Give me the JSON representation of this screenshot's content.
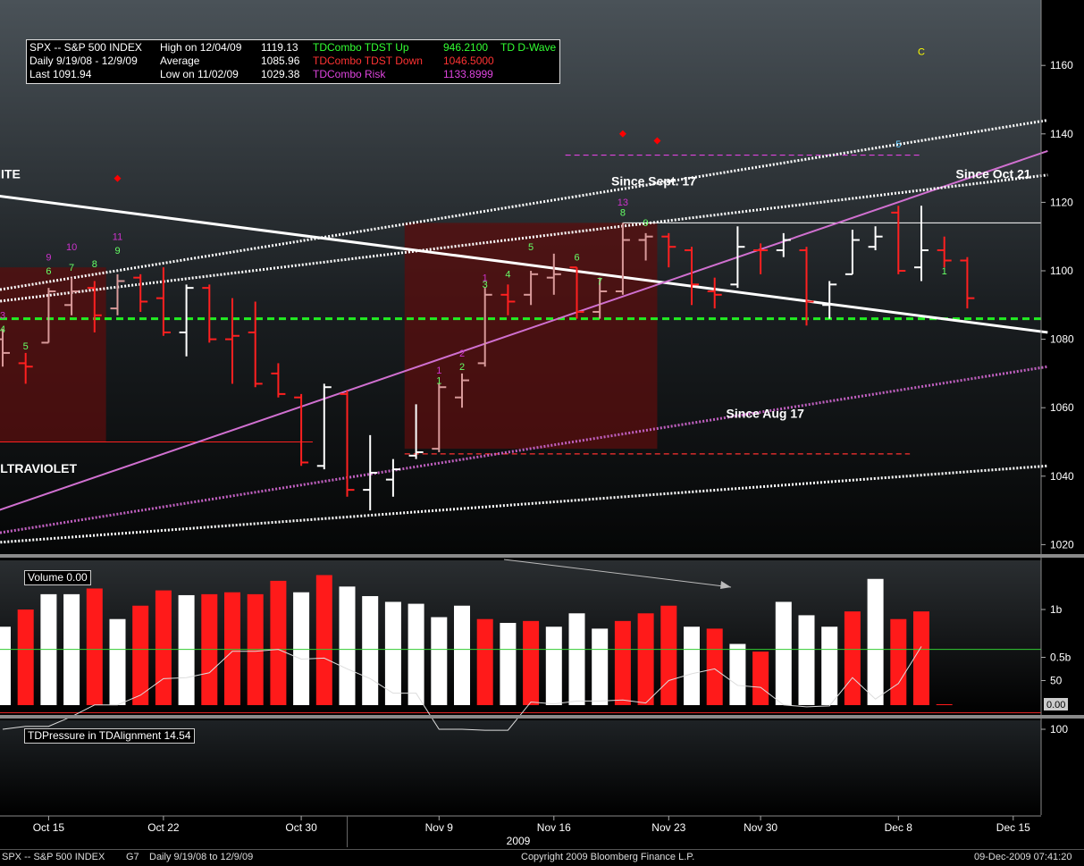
{
  "chart_data": {
    "type": "bar",
    "instrument": "SPX -- S&P 500 INDEX",
    "price_axis": {
      "ticks": [
        1020,
        1040,
        1060,
        1080,
        1100,
        1120,
        1140,
        1160
      ]
    },
    "volume_axis": {
      "ticks": [
        "1b",
        "0.5b",
        "0.00"
      ]
    },
    "pressure_axis": {
      "ticks": [
        100,
        50
      ],
      "upper_level": 83,
      "lower_level": 18
    },
    "x_tick_labels": [
      {
        "label": "Oct 15",
        "day": 2
      },
      {
        "label": "Oct 22",
        "day": 7
      },
      {
        "label": "Oct 30",
        "day": 13
      },
      {
        "label": "Nov 9",
        "day": 19
      },
      {
        "label": "Nov 16",
        "day": 24
      },
      {
        "label": "Nov 23",
        "day": 29
      },
      {
        "label": "Nov 30",
        "day": 33
      },
      {
        "label": "Dec 8",
        "day": 39
      },
      {
        "label": "Dec 15",
        "day": 44
      }
    ],
    "x_year_label": "2009",
    "ohlc": [
      {
        "day": 0,
        "o": 1080,
        "h": 1083,
        "l": 1072,
        "c": 1076,
        "color": "pink"
      },
      {
        "day": 1,
        "o": 1073,
        "h": 1076,
        "l": 1067,
        "c": 1072,
        "color": "red"
      },
      {
        "day": 2,
        "o": 1079,
        "h": 1095,
        "l": 1079,
        "c": 1094,
        "color": "pink"
      },
      {
        "day": 3,
        "o": 1090,
        "h": 1098,
        "l": 1087,
        "c": 1094,
        "color": "pink"
      },
      {
        "day": 4,
        "o": 1095,
        "h": 1097,
        "l": 1082,
        "c": 1087,
        "color": "red"
      },
      {
        "day": 5,
        "o": 1089,
        "h": 1099,
        "l": 1087,
        "c": 1097,
        "color": "pink"
      },
      {
        "day": 6,
        "o": 1098,
        "h": 1099,
        "l": 1088,
        "c": 1091,
        "color": "red"
      },
      {
        "day": 7,
        "o": 1092,
        "h": 1101,
        "l": 1081,
        "c": 1082,
        "color": "red"
      },
      {
        "day": 8,
        "o": 1082,
        "h": 1096,
        "l": 1075,
        "c": 1095,
        "color": "white"
      },
      {
        "day": 9,
        "o": 1095,
        "h": 1096,
        "l": 1079,
        "c": 1080,
        "color": "red"
      },
      {
        "day": 10,
        "o": 1080,
        "h": 1092,
        "l": 1067,
        "c": 1081,
        "color": "red"
      },
      {
        "day": 11,
        "o": 1082,
        "h": 1091,
        "l": 1066,
        "c": 1067,
        "color": "red"
      },
      {
        "day": 12,
        "o": 1070,
        "h": 1073,
        "l": 1063,
        "c": 1064,
        "color": "red"
      },
      {
        "day": 13,
        "o": 1063,
        "h": 1064,
        "l": 1043,
        "c": 1044,
        "color": "red"
      },
      {
        "day": 14,
        "o": 1043,
        "h": 1067,
        "l": 1042,
        "c": 1066,
        "color": "white"
      },
      {
        "day": 15,
        "o": 1064,
        "h": 1065,
        "l": 1034,
        "c": 1036,
        "color": "red"
      },
      {
        "day": 16,
        "o": 1036,
        "h": 1052,
        "l": 1030,
        "c": 1041,
        "color": "white"
      },
      {
        "day": 17,
        "o": 1039,
        "h": 1045,
        "l": 1034,
        "c": 1042,
        "color": "white"
      },
      {
        "day": 18,
        "o": 1046,
        "h": 1061,
        "l": 1045,
        "c": 1047,
        "color": "white"
      },
      {
        "day": 19,
        "o": 1048,
        "h": 1067,
        "l": 1047,
        "c": 1066,
        "color": "pink"
      },
      {
        "day": 20,
        "o": 1063,
        "h": 1070,
        "l": 1060,
        "c": 1068,
        "color": "pink"
      },
      {
        "day": 21,
        "o": 1073,
        "h": 1095,
        "l": 1072,
        "c": 1093,
        "color": "pink"
      },
      {
        "day": 22,
        "o": 1093,
        "h": 1096,
        "l": 1087,
        "c": 1091,
        "color": "red"
      },
      {
        "day": 23,
        "o": 1093,
        "h": 1100,
        "l": 1090,
        "c": 1099,
        "color": "pink"
      },
      {
        "day": 24,
        "o": 1098,
        "h": 1105,
        "l": 1093,
        "c": 1099,
        "color": "pink"
      },
      {
        "day": 25,
        "o": 1101,
        "h": 1101,
        "l": 1086,
        "c": 1088,
        "color": "red"
      },
      {
        "day": 26,
        "o": 1088,
        "h": 1098,
        "l": 1086,
        "c": 1094,
        "color": "pink"
      },
      {
        "day": 27,
        "o": 1094,
        "h": 1114,
        "l": 1093,
        "c": 1109,
        "color": "pink"
      },
      {
        "day": 28,
        "o": 1109,
        "h": 1111,
        "l": 1103,
        "c": 1110,
        "color": "pink"
      },
      {
        "day": 29,
        "o": 1110,
        "h": 1111,
        "l": 1101,
        "c": 1107,
        "color": "red"
      },
      {
        "day": 30,
        "o": 1106,
        "h": 1107,
        "l": 1090,
        "c": 1096,
        "color": "red"
      },
      {
        "day": 31,
        "o": 1094,
        "h": 1098,
        "l": 1089,
        "c": 1093,
        "color": "red"
      },
      {
        "day": 32,
        "o": 1096,
        "h": 1113,
        "l": 1095,
        "c": 1107,
        "color": "white"
      },
      {
        "day": 33,
        "o": 1106,
        "h": 1108,
        "l": 1099,
        "c": 1106,
        "color": "red"
      },
      {
        "day": 34,
        "o": 1106,
        "h": 1111,
        "l": 1104,
        "c": 1109,
        "color": "white"
      },
      {
        "day": 35,
        "o": 1106,
        "h": 1107,
        "l": 1084,
        "c": 1091,
        "color": "red"
      },
      {
        "day": 36,
        "o": 1090,
        "h": 1097,
        "l": 1086,
        "c": 1096,
        "color": "white"
      },
      {
        "day": 37,
        "o": 1099,
        "h": 1112,
        "l": 1099,
        "c": 1109,
        "color": "white"
      },
      {
        "day": 38,
        "o": 1107,
        "h": 1113,
        "l": 1106,
        "c": 1110,
        "color": "white"
      },
      {
        "day": 39,
        "o": 1117,
        "h": 1119,
        "l": 1099,
        "c": 1100,
        "color": "red"
      },
      {
        "day": 40,
        "o": 1101,
        "h": 1119,
        "l": 1097,
        "c": 1106,
        "color": "white"
      },
      {
        "day": 41,
        "o": 1106,
        "h": 1110,
        "l": 1101,
        "c": 1103,
        "color": "red"
      },
      {
        "day": 42,
        "o": 1103,
        "h": 1104,
        "l": 1089,
        "c": 1092,
        "color": "red"
      }
    ],
    "volume": [
      {
        "day": 0,
        "v": 0.82,
        "color": "white"
      },
      {
        "day": 1,
        "v": 1.0,
        "color": "red"
      },
      {
        "day": 2,
        "v": 1.16,
        "color": "white"
      },
      {
        "day": 3,
        "v": 1.16,
        "color": "white"
      },
      {
        "day": 4,
        "v": 1.22,
        "color": "red"
      },
      {
        "day": 5,
        "v": 0.9,
        "color": "white"
      },
      {
        "day": 6,
        "v": 1.04,
        "color": "red"
      },
      {
        "day": 7,
        "v": 1.2,
        "color": "red"
      },
      {
        "day": 8,
        "v": 1.15,
        "color": "white"
      },
      {
        "day": 9,
        "v": 1.16,
        "color": "red"
      },
      {
        "day": 10,
        "v": 1.18,
        "color": "red"
      },
      {
        "day": 11,
        "v": 1.16,
        "color": "red"
      },
      {
        "day": 12,
        "v": 1.3,
        "color": "red"
      },
      {
        "day": 13,
        "v": 1.18,
        "color": "white"
      },
      {
        "day": 14,
        "v": 1.36,
        "color": "red"
      },
      {
        "day": 15,
        "v": 1.24,
        "color": "white"
      },
      {
        "day": 16,
        "v": 1.14,
        "color": "white"
      },
      {
        "day": 17,
        "v": 1.08,
        "color": "white"
      },
      {
        "day": 18,
        "v": 1.06,
        "color": "white"
      },
      {
        "day": 19,
        "v": 0.92,
        "color": "white"
      },
      {
        "day": 20,
        "v": 1.04,
        "color": "white"
      },
      {
        "day": 21,
        "v": 0.9,
        "color": "red"
      },
      {
        "day": 22,
        "v": 0.86,
        "color": "white"
      },
      {
        "day": 23,
        "v": 0.88,
        "color": "red"
      },
      {
        "day": 24,
        "v": 0.82,
        "color": "white"
      },
      {
        "day": 25,
        "v": 0.96,
        "color": "white"
      },
      {
        "day": 26,
        "v": 0.8,
        "color": "white"
      },
      {
        "day": 27,
        "v": 0.88,
        "color": "red"
      },
      {
        "day": 28,
        "v": 0.96,
        "color": "red"
      },
      {
        "day": 29,
        "v": 1.04,
        "color": "red"
      },
      {
        "day": 30,
        "v": 0.82,
        "color": "white"
      },
      {
        "day": 31,
        "v": 0.8,
        "color": "red"
      },
      {
        "day": 32,
        "v": 0.64,
        "color": "white"
      },
      {
        "day": 33,
        "v": 0.56,
        "color": "red"
      },
      {
        "day": 34,
        "v": 1.08,
        "color": "white"
      },
      {
        "day": 35,
        "v": 0.94,
        "color": "white"
      },
      {
        "day": 36,
        "v": 0.82,
        "color": "white"
      },
      {
        "day": 37,
        "v": 0.98,
        "color": "red"
      },
      {
        "day": 38,
        "v": 1.32,
        "color": "white"
      },
      {
        "day": 39,
        "v": 0.9,
        "color": "red"
      },
      {
        "day": 40,
        "v": 0.98,
        "color": "red"
      },
      {
        "day": 41,
        "v": 0.0,
        "color": "red"
      }
    ],
    "pressure": [
      {
        "day": 0,
        "v": 100
      },
      {
        "day": 1,
        "v": 97
      },
      {
        "day": 2,
        "v": 97
      },
      {
        "day": 3,
        "v": 87
      },
      {
        "day": 4,
        "v": 75
      },
      {
        "day": 5,
        "v": 75
      },
      {
        "day": 6,
        "v": 65
      },
      {
        "day": 7,
        "v": 48
      },
      {
        "day": 8,
        "v": 47
      },
      {
        "day": 9,
        "v": 42
      },
      {
        "day": 10,
        "v": 20
      },
      {
        "day": 11,
        "v": 20
      },
      {
        "day": 12,
        "v": 18
      },
      {
        "day": 13,
        "v": 28
      },
      {
        "day": 14,
        "v": 27
      },
      {
        "day": 15,
        "v": 38
      },
      {
        "day": 16,
        "v": 48
      },
      {
        "day": 17,
        "v": 63
      },
      {
        "day": 18,
        "v": 63
      },
      {
        "day": 19,
        "v": 100
      },
      {
        "day": 20,
        "v": 100
      },
      {
        "day": 21,
        "v": 101
      },
      {
        "day": 22,
        "v": 101
      },
      {
        "day": 23,
        "v": 72
      },
      {
        "day": 24,
        "v": 74
      },
      {
        "day": 25,
        "v": 71
      },
      {
        "day": 26,
        "v": 71
      },
      {
        "day": 27,
        "v": 70
      },
      {
        "day": 28,
        "v": 73
      },
      {
        "day": 29,
        "v": 50
      },
      {
        "day": 30,
        "v": 43
      },
      {
        "day": 31,
        "v": 38
      },
      {
        "day": 32,
        "v": 55
      },
      {
        "day": 33,
        "v": 57
      },
      {
        "day": 34,
        "v": 75
      },
      {
        "day": 35,
        "v": 77
      },
      {
        "day": 36,
        "v": 76
      },
      {
        "day": 37,
        "v": 47
      },
      {
        "day": 38,
        "v": 69
      },
      {
        "day": 39,
        "v": 53
      },
      {
        "day": 40,
        "v": 15
      }
    ],
    "levels": {
      "green_dashed": 1086,
      "magenta_dashed_risk": 1133.8,
      "red_dashed_down": 1046.5,
      "white_top_line": 1114,
      "red_left_line": 1050
    },
    "trendlines": [
      {
        "style": "white-solid",
        "from": {
          "day": -1.5,
          "p": 1123
        },
        "to": {
          "day": 45.5,
          "p": 1082
        }
      },
      {
        "style": "pink-solid",
        "from": {
          "day": -1.5,
          "p": 1027
        },
        "to": {
          "day": 45.5,
          "p": 1135
        }
      },
      {
        "style": "white-dotted",
        "from": {
          "day": -1.5,
          "p": 1093
        },
        "to": {
          "day": 45.5,
          "p": 1144
        }
      },
      {
        "style": "white-dotted",
        "from": {
          "day": -1.5,
          "p": 1090
        },
        "to": {
          "day": 45.5,
          "p": 1128
        }
      },
      {
        "style": "pink-dotted",
        "from": {
          "day": -1.5,
          "p": 1022
        },
        "to": {
          "day": 45.5,
          "p": 1072
        }
      },
      {
        "style": "white-dotted",
        "from": {
          "day": -1.5,
          "p": 1020
        },
        "to": {
          "day": 45.5,
          "p": 1043
        }
      }
    ],
    "shaded_zones": [
      {
        "from_day": -1.5,
        "to_day": 4.5,
        "top": 1101,
        "bottom": 1050
      },
      {
        "from_day": 17.5,
        "to_day": 28.5,
        "top": 1114,
        "bottom": 1048
      }
    ],
    "annotations": [
      {
        "text": "S WHITE",
        "day": -1.5,
        "p": 1127,
        "color": "#ffffff"
      },
      {
        "text": "ULTRAVIOLET",
        "day": -0.5,
        "p": 1041,
        "color": "#ffffff"
      },
      {
        "text": "Since Sept. 17",
        "day": 26.5,
        "p": 1125,
        "color": "#ffffff"
      },
      {
        "text": "Since Oct 21",
        "day": 41.5,
        "p": 1127,
        "color": "#ffffff"
      },
      {
        "text": "Since Aug 17",
        "day": 31.5,
        "p": 1057,
        "color": "#ffffff"
      }
    ],
    "td_counts": [
      {
        "t": "4",
        "day": 0,
        "p": 1082,
        "c": "#6f6"
      },
      {
        "t": "3",
        "day": 0,
        "p": 1086,
        "c": "#c3c"
      },
      {
        "t": "5",
        "day": 1,
        "p": 1077,
        "c": "#6f6"
      },
      {
        "t": "6",
        "day": 2,
        "p": 1099,
        "c": "#6f6"
      },
      {
        "t": "9",
        "day": 2,
        "p": 1103,
        "c": "#c3c"
      },
      {
        "t": "7",
        "day": 3,
        "p": 1100,
        "c": "#6f6"
      },
      {
        "t": "10",
        "day": 3,
        "p": 1106,
        "c": "#c3c"
      },
      {
        "t": "8",
        "day": 4,
        "p": 1101,
        "c": "#6f6"
      },
      {
        "t": "9",
        "day": 5,
        "p": 1105,
        "c": "#6f6"
      },
      {
        "t": "11",
        "day": 5,
        "p": 1109,
        "c": "#c3c"
      },
      {
        "t": "1",
        "day": 19,
        "p": 1070,
        "c": "#c3c"
      },
      {
        "t": "1",
        "day": 19,
        "p": 1067,
        "c": "#6f6"
      },
      {
        "t": "2",
        "day": 20,
        "p": 1075,
        "c": "#c3c"
      },
      {
        "t": "2",
        "day": 20,
        "p": 1071,
        "c": "#6f6"
      },
      {
        "t": "1",
        "day": 21,
        "p": 1097,
        "c": "#c3c"
      },
      {
        "t": "3",
        "day": 21,
        "p": 1095,
        "c": "#6f6"
      },
      {
        "t": "4",
        "day": 22,
        "p": 1098,
        "c": "#6f6"
      },
      {
        "t": "5",
        "day": 23,
        "p": 1106,
        "c": "#6f6"
      },
      {
        "t": "6",
        "day": 25,
        "p": 1103,
        "c": "#6f6"
      },
      {
        "t": "7",
        "day": 26,
        "p": 1096,
        "c": "#6f6"
      },
      {
        "t": "8",
        "day": 27,
        "p": 1116,
        "c": "#6f6"
      },
      {
        "t": "13",
        "day": 27,
        "p": 1119,
        "c": "#c3c"
      },
      {
        "t": "9",
        "day": 28,
        "p": 1113,
        "c": "#6f6"
      },
      {
        "t": "5",
        "day": 39,
        "p": 1136,
        "c": "#6cf"
      },
      {
        "t": "1",
        "day": 41,
        "p": 1099,
        "c": "#6f6"
      },
      {
        "t": "C",
        "day": 40,
        "p": 1163,
        "c": "#ff0"
      }
    ],
    "markers": [
      {
        "day": 5,
        "p": 1127,
        "c": "#f00"
      },
      {
        "day": 27,
        "p": 1140,
        "c": "#f00"
      },
      {
        "day": 28.5,
        "p": 1138,
        "c": "#f00"
      }
    ]
  },
  "legend": {
    "col1": [
      "SPX -- S&P 500 INDEX",
      "Daily 9/19/08 - 12/9/09",
      "Last   1091.94"
    ],
    "col2": [
      "High on   12/04/09",
      "Average",
      "Low on   11/02/09"
    ],
    "col3": [
      "1119.13",
      "1085.96",
      "1029.38"
    ],
    "col4": [
      "TDCombo TDST Up",
      "TDCombo TDST Down",
      "TDCombo Risk"
    ],
    "col5": [
      "946.2100",
      "1046.5000",
      "1133.8999"
    ],
    "col6": [
      "TD D-Wave"
    ],
    "colors": {
      "up": "#33ff33",
      "down": "#ff3333",
      "risk": "#dd44dd",
      "text": "#ffffff"
    }
  },
  "volume_legend": "Volume   0.00",
  "pressure_legend": "TDPressure in TDAlignment   14.54",
  "footer": {
    "left": "SPX -- S&P 500 INDEX",
    "g7": "G7",
    "range": "Daily  9/19/08 to 12/9/09",
    "copyright": "Copyright 2009 Bloomberg Finance L.P.",
    "timestamp": "09-Dec-2009 07:41:20"
  }
}
